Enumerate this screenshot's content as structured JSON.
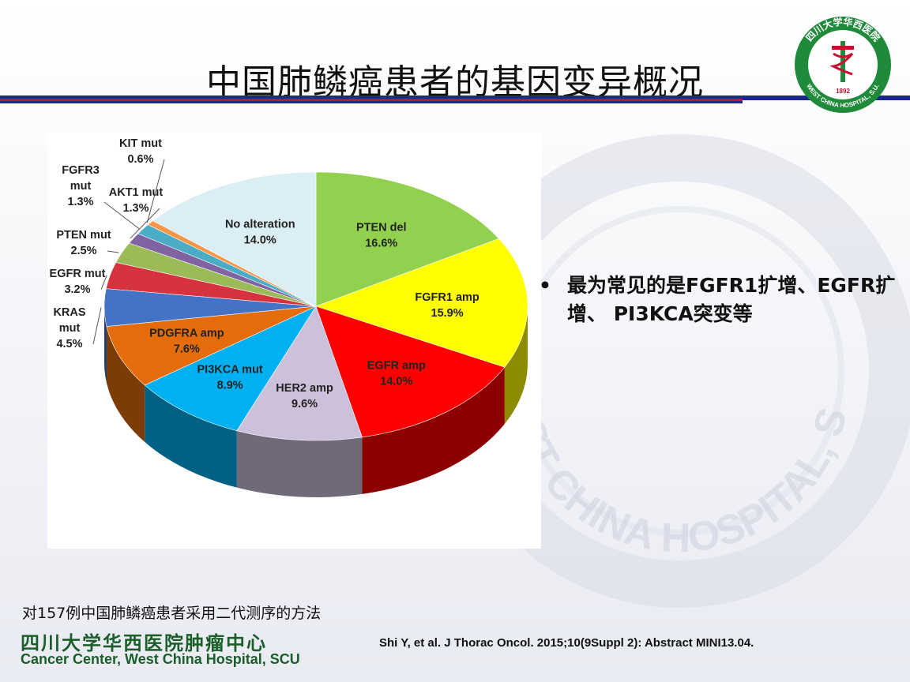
{
  "slide": {
    "title": "中国肺鳞癌患者的基因变异概况",
    "bullet_marker": "•",
    "bullet_text": "最为常见的是FGFR1扩增、EGFR扩增、 PI3KCA突变等",
    "method_note": "对157例中国肺鳞癌患者采用二代测序的方法",
    "center_name_cn": "四川大学华西医院肿瘤中心",
    "center_name_en": "Cancer Center, West China Hospital, SCU",
    "citation": "Shi Y, et al. J Thorac Oncol. 2015;10(9Suppl 2): Abstract MINI13.04.",
    "logo": {
      "text_top": "四川大学华西医院",
      "text_bottom": "WEST CHINA HOSPITAL, S.U.",
      "year": "1892",
      "color": "#1f8a3a"
    },
    "watermark_text": "WEST CHINA HOSPITAL, S.U."
  },
  "chart_data": {
    "type": "pie",
    "style": "3d",
    "slices": [
      {
        "label": "PTEN del",
        "value": 16.6,
        "display": "16.6%",
        "color": "#92d050"
      },
      {
        "label": "FGFR1 amp",
        "value": 15.9,
        "display": "15.9%",
        "color": "#ffff00"
      },
      {
        "label": "EGFR amp",
        "value": 14.0,
        "display": "14.0%",
        "color": "#ff0000"
      },
      {
        "label": "HER2 amp",
        "value": 9.6,
        "display": "9.6%",
        "color": "#ccc0da"
      },
      {
        "label": "PI3KCA mut",
        "value": 8.9,
        "display": "8.9%",
        "color": "#00b0f0"
      },
      {
        "label": "PDGFRA amp",
        "value": 7.6,
        "display": "7.6%",
        "color": "#e46c0a"
      },
      {
        "label": "KRAS mut",
        "value": 4.5,
        "display": "4.5%",
        "color": "#4472c4"
      },
      {
        "label": "EGFR mut",
        "value": 3.2,
        "display": "3.2%",
        "color": "#d6333f"
      },
      {
        "label": "PTEN mut",
        "value": 2.5,
        "display": "2.5%",
        "color": "#9bbb59"
      },
      {
        "label": "AKT1 mut",
        "value": 1.3,
        "display": "1.3%",
        "color": "#8064a2"
      },
      {
        "label": "FGFR3 mut",
        "value": 1.3,
        "display": "1.3%",
        "color": "#4bacc6"
      },
      {
        "label": "KIT mut",
        "value": 0.6,
        "display": "0.6%",
        "color": "#f79646"
      },
      {
        "label": "No alteration",
        "value": 14.0,
        "display": "14.0%",
        "color": "#dbeef4"
      }
    ]
  }
}
